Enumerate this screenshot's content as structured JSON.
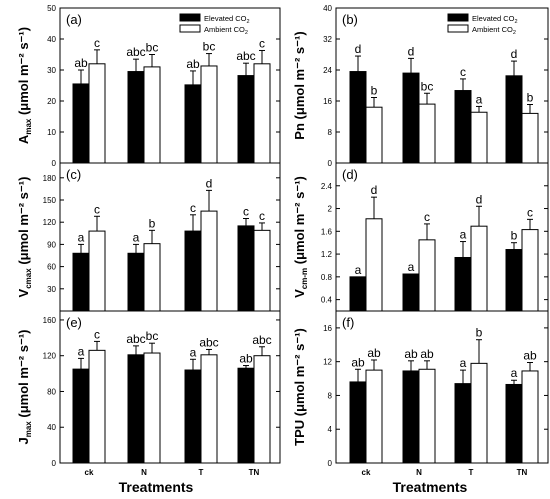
{
  "legend": {
    "elevated": "Elevated CO",
    "ambient": "Ambient CO",
    "sub": "2"
  },
  "x_title": "Treatments",
  "chart_data": [
    {
      "id": "a",
      "type": "bar",
      "panel_label": "(a)",
      "ylabel": "A",
      "ylabel_sub": "max",
      "ylabel_unit": "(μmol m⁻² s⁻¹)",
      "ylim": [
        0,
        50
      ],
      "yticks": [
        0,
        10,
        20,
        30,
        40,
        50
      ],
      "categories": [
        "ck",
        "N",
        "T",
        "TN"
      ],
      "series": [
        {
          "name": "Elevated CO2",
          "values": [
            25.5,
            29.5,
            25.2,
            28.2
          ],
          "errors": [
            4.5,
            4.0,
            4.5,
            4.0
          ],
          "letters": [
            "ab",
            "abc",
            "ab",
            "abc"
          ]
        },
        {
          "name": "Ambient CO2",
          "values": [
            32.0,
            31.0,
            31.3,
            32.0
          ],
          "errors": [
            4.5,
            4.0,
            4.0,
            4.3
          ],
          "letters": [
            "c",
            "bc",
            "bc",
            "c"
          ]
        }
      ]
    },
    {
      "id": "b",
      "type": "bar",
      "panel_label": "(b)",
      "ylabel": "Pn",
      "ylabel_sub": "",
      "ylabel_unit": "(μmol m⁻² s⁻¹)",
      "ylim": [
        0,
        40
      ],
      "yticks": [
        0,
        8,
        16,
        24,
        32,
        40
      ],
      "categories": [
        "ck",
        "N",
        "T",
        "TN"
      ],
      "series": [
        {
          "name": "Elevated CO2",
          "values": [
            23.6,
            23.2,
            18.7,
            22.5
          ],
          "errors": [
            4.0,
            3.8,
            3.0,
            3.8
          ],
          "letters": [
            "d",
            "d",
            "c",
            "d"
          ]
        },
        {
          "name": "Ambient CO2",
          "values": [
            14.4,
            15.2,
            13.1,
            12.8
          ],
          "errors": [
            2.5,
            2.8,
            1.5,
            2.3
          ],
          "letters": [
            "b",
            "bc",
            "a",
            "b"
          ]
        }
      ]
    },
    {
      "id": "c",
      "type": "bar",
      "panel_label": "(c)",
      "ylabel": "V",
      "ylabel_sub": "cmax",
      "ylabel_unit": "(μmol m⁻² s⁻¹)",
      "ylim": [
        0,
        200
      ],
      "yticks": [
        30,
        60,
        90,
        120,
        150,
        180
      ],
      "categories": [
        "ck",
        "N",
        "T",
        "TN"
      ],
      "series": [
        {
          "name": "Elevated CO2",
          "values": [
            78,
            78,
            108,
            115
          ],
          "errors": [
            12,
            12,
            22,
            10
          ],
          "letters": [
            "a",
            "a",
            "c",
            "c"
          ]
        },
        {
          "name": "Ambient CO2",
          "values": [
            108,
            91,
            135,
            109
          ],
          "errors": [
            20,
            18,
            28,
            10
          ],
          "letters": [
            "c",
            "b",
            "d",
            "c"
          ]
        }
      ]
    },
    {
      "id": "d",
      "type": "bar",
      "panel_label": "(d)",
      "ylabel": "V",
      "ylabel_sub": "cm-m",
      "ylabel_unit": "(μmol m⁻² s⁻¹)",
      "ylim": [
        0.2,
        2.8
      ],
      "yticks": [
        0.4,
        0.8,
        1.2,
        1.6,
        2.0,
        2.4
      ],
      "categories": [
        "ck",
        "N",
        "T",
        "TN"
      ],
      "series": [
        {
          "name": "Elevated CO2",
          "values": [
            0.8,
            0.85,
            1.14,
            1.28
          ],
          "errors": [
            0.0,
            0.0,
            0.28,
            0.12
          ],
          "letters": [
            "a",
            "a",
            "a",
            "b"
          ]
        },
        {
          "name": "Ambient CO2",
          "values": [
            1.82,
            1.45,
            1.69,
            1.63
          ],
          "errors": [
            0.38,
            0.28,
            0.35,
            0.18
          ],
          "letters": [
            "d",
            "c",
            "d",
            "c"
          ]
        }
      ]
    },
    {
      "id": "e",
      "type": "bar",
      "panel_label": "(e)",
      "ylabel": "J",
      "ylabel_sub": "max",
      "ylabel_unit": "(μmol m⁻² s⁻¹)",
      "ylim": [
        0,
        170
      ],
      "yticks": [
        0,
        40,
        80,
        120,
        160
      ],
      "categories": [
        "ck",
        "N",
        "T",
        "TN"
      ],
      "series": [
        {
          "name": "Elevated CO2",
          "values": [
            105,
            121,
            104,
            106
          ],
          "errors": [
            12,
            10,
            12,
            3
          ],
          "letters": [
            "a",
            "abc",
            "a",
            "ab"
          ]
        },
        {
          "name": "Ambient CO2",
          "values": [
            126,
            123,
            121,
            120
          ],
          "errors": [
            10,
            11,
            6,
            10
          ],
          "letters": [
            "c",
            "bc",
            "abc",
            "abc"
          ]
        }
      ]
    },
    {
      "id": "f",
      "type": "bar",
      "panel_label": "(f)",
      "ylabel": "TPU",
      "ylabel_sub": "",
      "ylabel_unit": "(μmol m⁻² s⁻¹)",
      "ylim": [
        0,
        18
      ],
      "yticks": [
        0,
        4,
        8,
        12,
        16
      ],
      "categories": [
        "ck",
        "N",
        "T",
        "TN"
      ],
      "series": [
        {
          "name": "Elevated CO2",
          "values": [
            9.6,
            10.9,
            9.4,
            9.3
          ],
          "errors": [
            1.5,
            1.2,
            1.6,
            0.5
          ],
          "letters": [
            "ab",
            "ab",
            "a",
            "a"
          ]
        },
        {
          "name": "Ambient CO2",
          "values": [
            11.0,
            11.1,
            11.8,
            10.9
          ],
          "errors": [
            1.2,
            1.0,
            2.8,
            1.0
          ],
          "letters": [
            "ab",
            "ab",
            "b",
            "ab"
          ]
        }
      ]
    }
  ]
}
